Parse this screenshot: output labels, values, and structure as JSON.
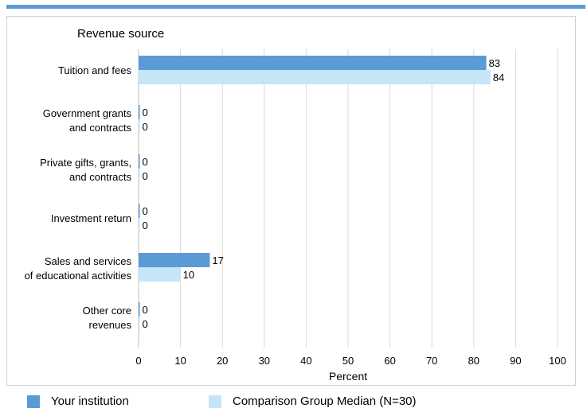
{
  "chart_data": {
    "type": "bar",
    "orientation": "horizontal",
    "title": "Revenue source",
    "xlabel": "Percent",
    "ylabel": "",
    "xlim": [
      0,
      100
    ],
    "xticks": [
      0,
      10,
      20,
      30,
      40,
      50,
      60,
      70,
      80,
      90,
      100
    ],
    "grid": true,
    "legend_position": "bottom",
    "categories": [
      [
        "Tuition and fees"
      ],
      [
        "Government grants",
        "and contracts"
      ],
      [
        "Private gifts, grants,",
        "and contracts"
      ],
      [
        "Investment return"
      ],
      [
        "Sales and services",
        "of educational activities"
      ],
      [
        "Other core",
        "revenues"
      ]
    ],
    "series": [
      {
        "name": "Your institution",
        "color": "#5b9bd5",
        "values": [
          83,
          0,
          0,
          0,
          17,
          0
        ]
      },
      {
        "name": "Comparison Group Median (N=30)",
        "color": "#c6e5f8",
        "values": [
          84,
          0,
          0,
          0,
          10,
          0
        ]
      }
    ]
  }
}
